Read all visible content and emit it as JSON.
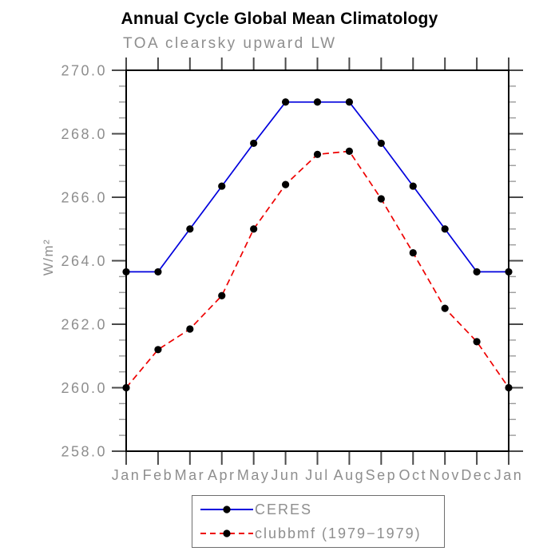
{
  "chart_data": {
    "type": "line",
    "title": "Annual Cycle Global Mean Climatology",
    "subtitle": "TOA clearsky upward LW",
    "ylabel": "W/m²",
    "xlabel": "",
    "categories": [
      "Jan",
      "Feb",
      "Mar",
      "Apr",
      "May",
      "Jun",
      "Jul",
      "Aug",
      "Sep",
      "Oct",
      "Nov",
      "Dec",
      "Jan"
    ],
    "ylim": [
      258.0,
      270.0
    ],
    "ytick_major_step": 2.0,
    "ytick_minor_step": 0.5,
    "ytick_labels": [
      "258.0",
      "260.0",
      "262.0",
      "264.0",
      "266.0",
      "268.0",
      "270.0"
    ],
    "grid": false,
    "legend_position": "bottom-center",
    "series": [
      {
        "name": "CERES",
        "color": "#0000dd",
        "line_style": "solid",
        "marker": "filled-circle",
        "marker_color": "#000000",
        "values": [
          263.65,
          263.65,
          265.0,
          266.35,
          267.7,
          269.0,
          269.0,
          269.0,
          267.7,
          266.35,
          265.0,
          263.65,
          263.65
        ]
      },
      {
        "name": "clubbmf (1979−1979)",
        "color": "#ee0000",
        "line_style": "dashed",
        "marker": "filled-circle",
        "marker_color": "#000000",
        "values": [
          260.0,
          261.2,
          261.85,
          262.9,
          265.0,
          266.4,
          267.35,
          267.45,
          265.95,
          264.25,
          262.5,
          261.45,
          260.0
        ]
      }
    ]
  },
  "colors": {
    "frame": "#000000",
    "major_tick": "#4a4a4a",
    "minor_tick": "#9a9a9a",
    "label_gray": "#8e8e8e"
  }
}
